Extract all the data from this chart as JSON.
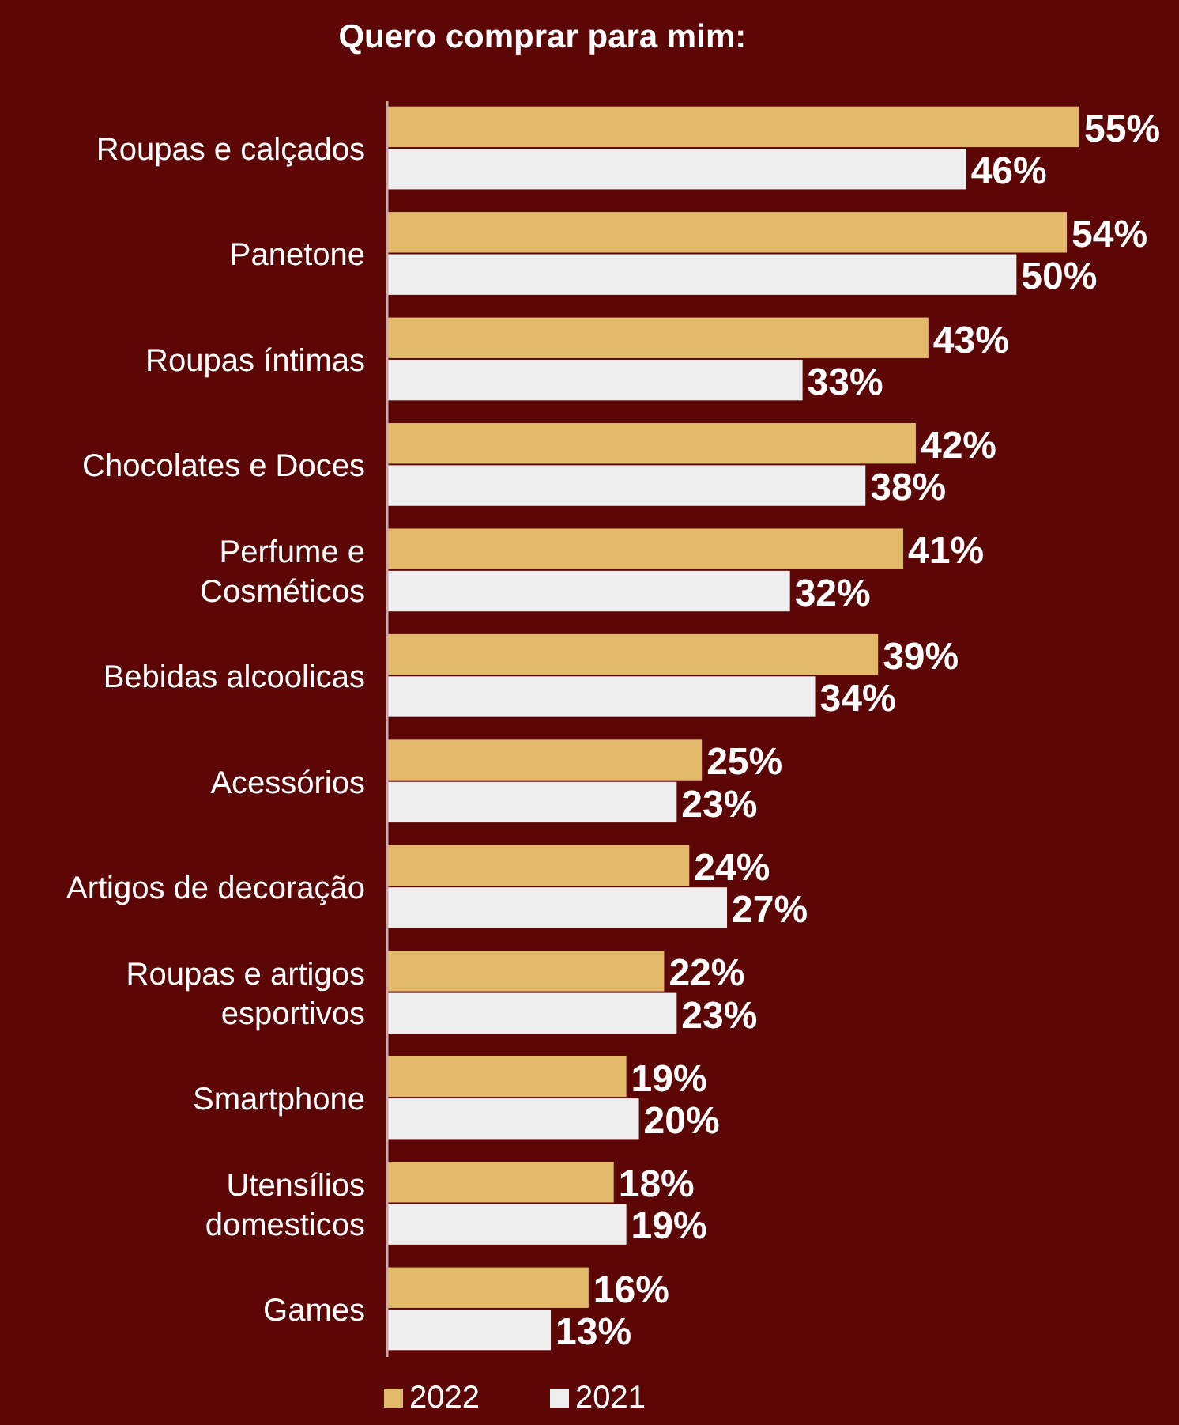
{
  "chart_data": {
    "type": "bar",
    "orientation": "horizontal",
    "title": "Quero comprar para mim:",
    "categories": [
      "Roupas e calçados",
      "Panetone",
      "Roupas íntimas",
      "Chocolates e Doces",
      "Perfume e\nCosméticos",
      "Bebidas alcoolicas",
      "Acessórios",
      "Artigos de decoração",
      "Roupas e artigos\nesportivos",
      "Smartphone",
      "Utensílios\ndomesticos",
      "Games"
    ],
    "series": [
      {
        "name": "2022",
        "color": "#e3b96a",
        "values": [
          55,
          54,
          43,
          42,
          41,
          39,
          25,
          24,
          22,
          19,
          18,
          16
        ],
        "value_labels": [
          "55%",
          "54%",
          "43%",
          "42%",
          "41%",
          "39%",
          "25%",
          "24%",
          "22%",
          "19%",
          "18%",
          "16%"
        ]
      },
      {
        "name": "2021",
        "color": "#eeeeee",
        "values": [
          46,
          50,
          33,
          38,
          32,
          34,
          23,
          27,
          23,
          20,
          19,
          13
        ],
        "value_labels": [
          "46%",
          "50%",
          "33%",
          "38%",
          "32%",
          "34%",
          "23%",
          "27%",
          "23%",
          "20%",
          "19%",
          "13%"
        ]
      }
    ],
    "legend": "bottom"
  }
}
